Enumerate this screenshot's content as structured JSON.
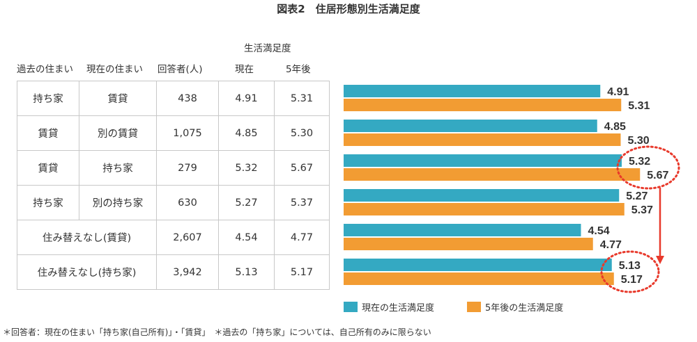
{
  "title": "図表2　住居形態別生活満足度",
  "table": {
    "group_header": "生活満足度",
    "headers": [
      "過去の住まい",
      "現在の住まい",
      "回答者(人)",
      "現在",
      "5年後"
    ],
    "rows": [
      {
        "past": "持ち家",
        "current": "賃貸",
        "n": "438",
        "now": "4.91",
        "later": "5.31"
      },
      {
        "past": "賃貸",
        "current": "別の賃貸",
        "n": "1,075",
        "now": "4.85",
        "later": "5.30"
      },
      {
        "past": "賃貸",
        "current": "持ち家",
        "n": "279",
        "now": "5.32",
        "later": "5.67"
      },
      {
        "past": "持ち家",
        "current": "別の持ち家",
        "n": "630",
        "now": "5.27",
        "later": "5.37"
      },
      {
        "merged": "住み替えなし(賃貸)",
        "n": "2,607",
        "now": "4.54",
        "later": "4.77"
      },
      {
        "merged": "住み替えなし(持ち家)",
        "n": "3,942",
        "now": "5.13",
        "later": "5.17"
      }
    ]
  },
  "chart_data": {
    "type": "bar",
    "orientation": "horizontal",
    "categories": [
      "持ち家→賃貸",
      "賃貸→別の賃貸",
      "賃貸→持ち家",
      "持ち家→別の持ち家",
      "住み替えなし(賃貸)",
      "住み替えなし(持ち家)"
    ],
    "series": [
      {
        "name": "現在の生活満足度",
        "color": "#34a9c2",
        "values": [
          4.91,
          4.85,
          5.32,
          5.27,
          4.54,
          5.13
        ]
      },
      {
        "name": "5年後の生活満足度",
        "color": "#f29c33",
        "values": [
          5.31,
          5.3,
          5.67,
          5.37,
          4.77,
          5.17
        ]
      }
    ],
    "xlim": [
      0,
      6.5
    ],
    "grid": false,
    "legend": "bottom",
    "highlight": {
      "color": "#e8392b",
      "from_category": 2,
      "to_category": 5
    }
  },
  "footnote": "＊回答者：現在の住まい「持ち家(自己所有)」・「賃貸」　＊過去の「持ち家」については、自己所有のみに限らない"
}
